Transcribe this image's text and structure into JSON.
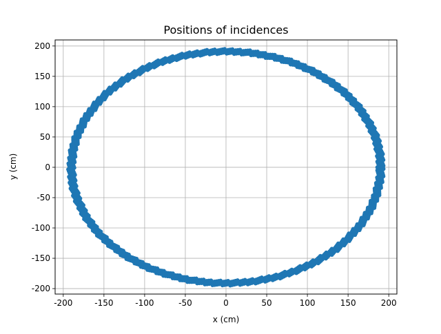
{
  "chart_data": {
    "type": "scatter",
    "title": "Positions of incidences",
    "xlabel": "x (cm)",
    "ylabel": "y (cm)",
    "xlim": [
      -210,
      210
    ],
    "ylim": [
      -209,
      210
    ],
    "xticks": [
      -200,
      -150,
      -100,
      -50,
      0,
      50,
      100,
      150,
      200
    ],
    "yticks": [
      -200,
      -150,
      -100,
      -50,
      0,
      50,
      100,
      150,
      200
    ],
    "grid": true,
    "series_color": "#1f77b4",
    "ring": {
      "center": [
        0,
        0
      ],
      "radius_x_inner": 186,
      "radius_x_outer": 194,
      "radius_y_inner": 187,
      "radius_y_outer": 195
    }
  }
}
